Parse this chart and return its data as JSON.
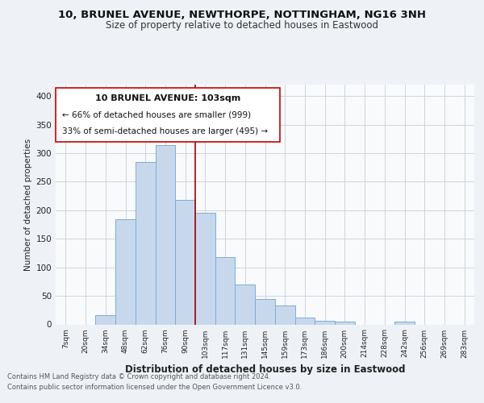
{
  "title": "10, BRUNEL AVENUE, NEWTHORPE, NOTTINGHAM, NG16 3NH",
  "subtitle": "Size of property relative to detached houses in Eastwood",
  "xlabel": "Distribution of detached houses by size in Eastwood",
  "ylabel": "Number of detached properties",
  "bar_color": "#c8d8ec",
  "bar_edge_color": "#7aafd4",
  "background_color": "#eef2f7",
  "plot_bg_color": "#f8fafc",
  "grid_color": "#c8cfd8",
  "vline_color": "#aa0000",
  "vline_x": 6.5,
  "annotation_box_edge": "#cc0000",
  "annotation_title": "10 BRUNEL AVENUE: 103sqm",
  "annotation_line1": "← 66% of detached houses are smaller (999)",
  "annotation_line2": "33% of semi-detached houses are larger (495) →",
  "bins": [
    "7sqm",
    "20sqm",
    "34sqm",
    "48sqm",
    "62sqm",
    "76sqm",
    "90sqm",
    "103sqm",
    "117sqm",
    "131sqm",
    "145sqm",
    "159sqm",
    "173sqm",
    "186sqm",
    "200sqm",
    "214sqm",
    "228sqm",
    "242sqm",
    "256sqm",
    "269sqm",
    "283sqm"
  ],
  "values": [
    0,
    0,
    16,
    184,
    285,
    314,
    218,
    195,
    118,
    70,
    45,
    33,
    12,
    7,
    5,
    0,
    0,
    5,
    0,
    0,
    0
  ],
  "ylim": [
    0,
    420
  ],
  "yticks": [
    0,
    50,
    100,
    150,
    200,
    250,
    300,
    350,
    400
  ],
  "footer_line1": "Contains HM Land Registry data © Crown copyright and database right 2024.",
  "footer_line2": "Contains public sector information licensed under the Open Government Licence v3.0."
}
